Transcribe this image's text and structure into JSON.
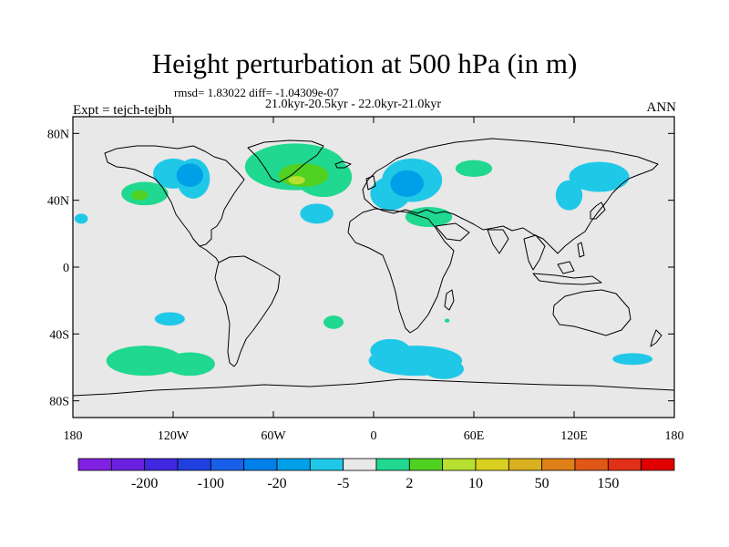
{
  "title": "Height perturbation at 500 hPa (in m)",
  "stats_text": "rmsd= 1.83022 diff= -1.04309e-07",
  "period_text": "21.0kyr-20.5kyr - 22.0kyr-21.0kyr",
  "experiment_text": "Expt = tejch-tejbh",
  "season_text": "ANN",
  "map": {
    "lon_range": [
      -180,
      180
    ],
    "lat_range": [
      -90,
      90
    ],
    "background_color": "#e8e8e8",
    "x_ticks": [
      {
        "lon": -180,
        "label": "180"
      },
      {
        "lon": -120,
        "label": "120W"
      },
      {
        "lon": -60,
        "label": "60W"
      },
      {
        "lon": 0,
        "label": "0"
      },
      {
        "lon": 60,
        "label": "60E"
      },
      {
        "lon": 120,
        "label": "120E"
      },
      {
        "lon": 180,
        "label": "180"
      }
    ],
    "y_ticks": [
      {
        "lat": 80,
        "label": "80N"
      },
      {
        "lat": 40,
        "label": "40N"
      },
      {
        "lat": 0,
        "label": "0"
      },
      {
        "lat": -40,
        "label": "40S"
      },
      {
        "lat": -80,
        "label": "80S"
      }
    ],
    "anomalies": [
      {
        "sign": "negative",
        "lon": -120,
        "lat": 56,
        "rlon": 12,
        "rlat": 9,
        "color": "#20c8e8"
      },
      {
        "sign": "negative",
        "lon": -108,
        "lat": 53,
        "rlon": 10,
        "rlat": 12,
        "color": "#20c8e8"
      },
      {
        "sign": "negative",
        "lon": -110,
        "lat": 55,
        "rlon": 8,
        "rlat": 7,
        "color": "#00a0e8"
      },
      {
        "sign": "positive",
        "lon": -47,
        "lat": 60,
        "rlon": 30,
        "rlat": 14,
        "color": "#20d890"
      },
      {
        "sign": "positive",
        "lon": -30,
        "lat": 54,
        "rlon": 17,
        "rlat": 12,
        "color": "#20d890"
      },
      {
        "sign": "positive",
        "lon": -42,
        "lat": 55,
        "rlon": 15,
        "rlat": 7,
        "color": "#50d020"
      },
      {
        "sign": "positive",
        "lon": -46,
        "lat": 52,
        "rlon": 5,
        "rlat": 2.5,
        "color": "#b8e030"
      },
      {
        "sign": "positive",
        "lon": -137,
        "lat": 44,
        "rlon": 14,
        "rlat": 7,
        "color": "#20d890"
      },
      {
        "sign": "positive",
        "lon": -140,
        "lat": 43,
        "rlon": 5,
        "rlat": 3,
        "color": "#50d020"
      },
      {
        "sign": "negative",
        "lon": -175,
        "lat": 29,
        "rlon": 4,
        "rlat": 3,
        "color": "#20c8e8"
      },
      {
        "sign": "negative",
        "lon": -34,
        "lat": 32,
        "rlon": 10,
        "rlat": 6,
        "color": "#20c8e8"
      },
      {
        "sign": "negative",
        "lon": 23,
        "lat": 52,
        "rlon": 18,
        "rlat": 13,
        "color": "#20c8e8"
      },
      {
        "sign": "negative",
        "lon": 10,
        "lat": 44,
        "rlon": 12,
        "rlat": 10,
        "color": "#20c8e8"
      },
      {
        "sign": "negative",
        "lon": 20,
        "lat": 50,
        "rlon": 10,
        "rlat": 8,
        "color": "#00a0e8"
      },
      {
        "sign": "positive",
        "lon": 33,
        "lat": 30,
        "rlon": 14,
        "rlat": 6,
        "color": "#20d890"
      },
      {
        "sign": "positive",
        "lon": 60,
        "lat": 59,
        "rlon": 11,
        "rlat": 5,
        "color": "#20d890"
      },
      {
        "sign": "negative",
        "lon": 135,
        "lat": 54,
        "rlon": 18,
        "rlat": 9,
        "color": "#20c8e8"
      },
      {
        "sign": "negative",
        "lon": 117,
        "lat": 43,
        "rlon": 8,
        "rlat": 9,
        "color": "#20c8e8"
      },
      {
        "sign": "negative",
        "lon": -122,
        "lat": -31,
        "rlon": 9,
        "rlat": 4,
        "color": "#20c8e8"
      },
      {
        "sign": "positive",
        "lon": -137,
        "lat": -56,
        "rlon": 23,
        "rlat": 9,
        "color": "#20d890"
      },
      {
        "sign": "positive",
        "lon": -110,
        "lat": -58,
        "rlon": 15,
        "rlat": 7,
        "color": "#20d890"
      },
      {
        "sign": "positive",
        "lon": -24,
        "lat": -33,
        "rlon": 6,
        "rlat": 4,
        "color": "#20d890"
      },
      {
        "sign": "negative",
        "lon": 25,
        "lat": -56,
        "rlon": 28,
        "rlat": 9,
        "color": "#20c8e8"
      },
      {
        "sign": "negative",
        "lon": 10,
        "lat": -50,
        "rlon": 12,
        "rlat": 7,
        "color": "#20c8e8"
      },
      {
        "sign": "negative",
        "lon": 42,
        "lat": -61,
        "rlon": 12,
        "rlat": 6,
        "color": "#20c8e8"
      },
      {
        "sign": "negative",
        "lon": 155,
        "lat": -55,
        "rlon": 12,
        "rlat": 3.5,
        "color": "#20c8e8"
      },
      {
        "sign": "positive",
        "lon": 44,
        "lat": -32,
        "rlon": 1.5,
        "rlat": 1.2,
        "color": "#20d890"
      }
    ]
  },
  "colorbar": {
    "colors": [
      "#8020e0",
      "#6a20e0",
      "#4028e0",
      "#2040e0",
      "#1860e8",
      "#0080e8",
      "#00a0e8",
      "#20c8e8",
      "#e8e8e8",
      "#20d890",
      "#50d020",
      "#b8e030",
      "#d8d020",
      "#d8b020",
      "#e08018",
      "#e05818",
      "#e03018",
      "#e00000"
    ],
    "labels": [
      {
        "value": "-200",
        "after_index": 1
      },
      {
        "value": "-100",
        "after_index": 3
      },
      {
        "value": "-20",
        "after_index": 5
      },
      {
        "value": "-5",
        "after_index": 7
      },
      {
        "value": "2",
        "after_index": 9
      },
      {
        "value": "10",
        "after_index": 11
      },
      {
        "value": "50",
        "after_index": 13
      },
      {
        "value": "150",
        "after_index": 15
      }
    ]
  }
}
